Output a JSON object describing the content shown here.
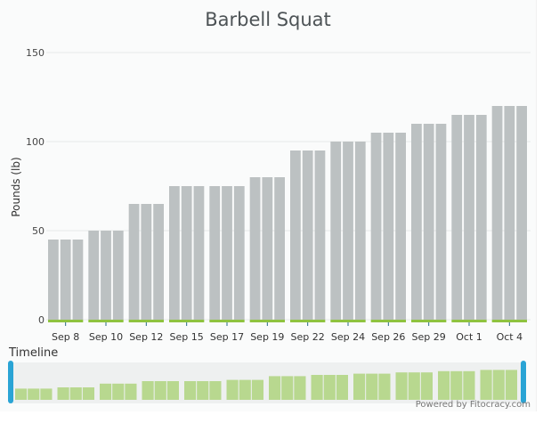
{
  "chart_data": {
    "type": "bar",
    "title": "Barbell Squat",
    "ylabel": "Pounds (lb)",
    "xlabel": "",
    "ylim": [
      0,
      150
    ],
    "yticks": [
      0,
      50,
      100,
      150
    ],
    "grid": true,
    "categories": [
      "Sep 8",
      "Sep 10",
      "Sep 12",
      "Sep 15",
      "Sep 17",
      "Sep 19",
      "Sep 22",
      "Sep 24",
      "Sep 26",
      "Sep 29",
      "Oct 1",
      "Oct 4"
    ],
    "sets_per_session": 3,
    "values": [
      45,
      50,
      65,
      75,
      75,
      80,
      95,
      100,
      105,
      110,
      115,
      120
    ],
    "colors": {
      "bar": "#bcc1c2",
      "baseline": "#8fc33f",
      "timeline_bar": "#b8d88f",
      "handle": "#2aa4d5"
    }
  },
  "timeline": {
    "label": "Timeline"
  },
  "footer": {
    "powered_by": "Powered by Fitocracy.com"
  }
}
